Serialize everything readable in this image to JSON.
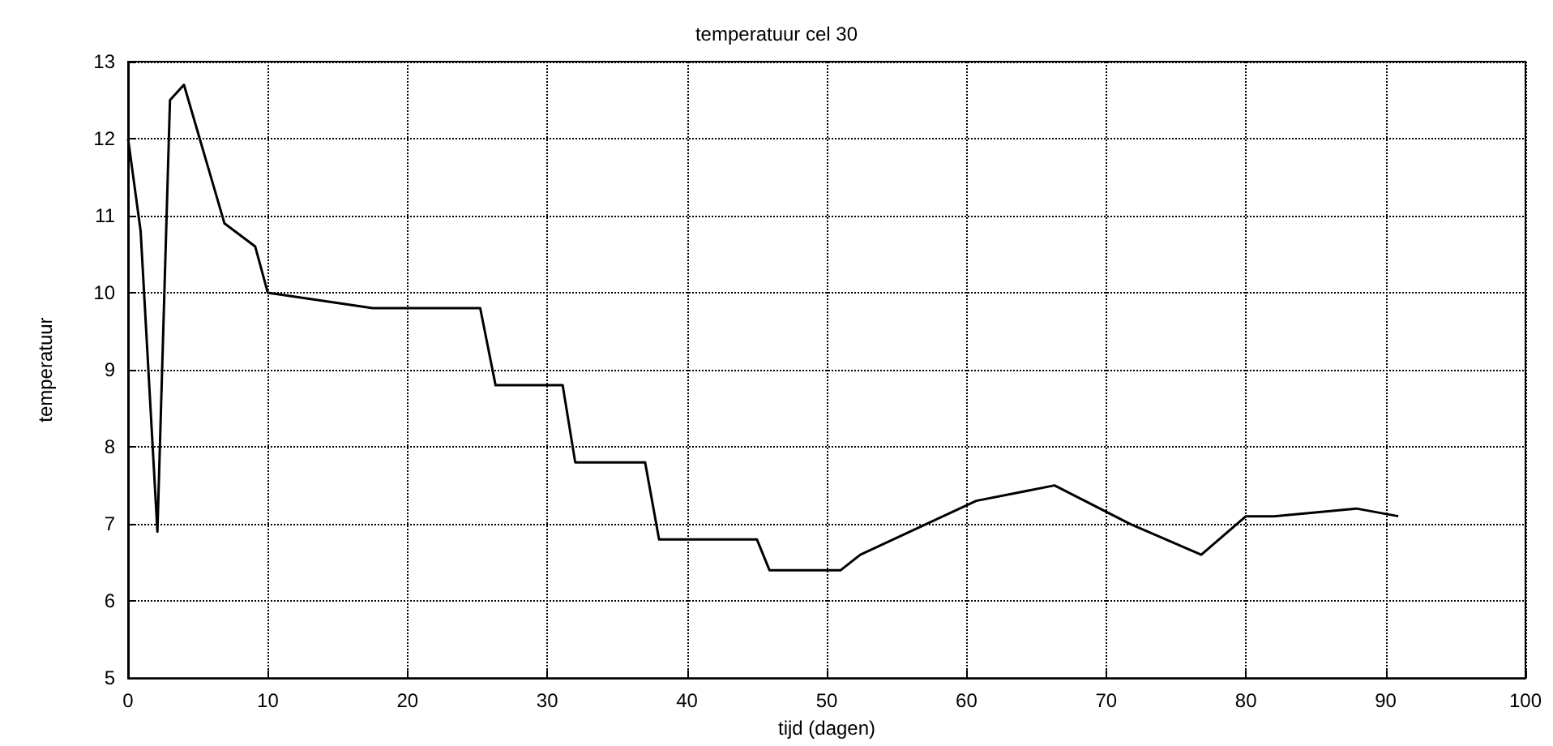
{
  "chart_data": {
    "type": "line",
    "title": "temperatuur cel 30",
    "xlabel": "tijd (dagen)",
    "ylabel": "temperatuur",
    "series": [
      {
        "color": "#000000",
        "x": [
          0,
          0.9,
          2.1,
          3.0,
          4.0,
          6.9,
          9.1,
          10,
          17.5,
          25.2,
          26.3,
          31.1,
          32.0,
          37.0,
          38.0,
          45.0,
          45.9,
          51.0,
          52.4,
          60.7,
          66.3,
          71.7,
          76.8,
          80.0,
          82.0,
          87.9,
          90.9
        ],
        "values": [
          12,
          10.8,
          6.9,
          12.5,
          12.7,
          10.9,
          10.6,
          10,
          9.8,
          9.8,
          8.8,
          8.8,
          7.8,
          7.8,
          6.8,
          6.8,
          6.4,
          6.4,
          6.6,
          7.3,
          7.5,
          7.0,
          6.6,
          7.1,
          7.1,
          7.2,
          7.1
        ]
      }
    ],
    "xlim": [
      0,
      100
    ],
    "xticks": [
      0,
      10,
      20,
      30,
      40,
      50,
      60,
      70,
      80,
      90,
      100
    ],
    "ylim": [
      5,
      13
    ],
    "yticks": [
      5,
      6,
      7,
      8,
      9,
      10,
      11,
      12,
      13
    ],
    "grid": true,
    "line_style": "solid",
    "marker": "none"
  }
}
